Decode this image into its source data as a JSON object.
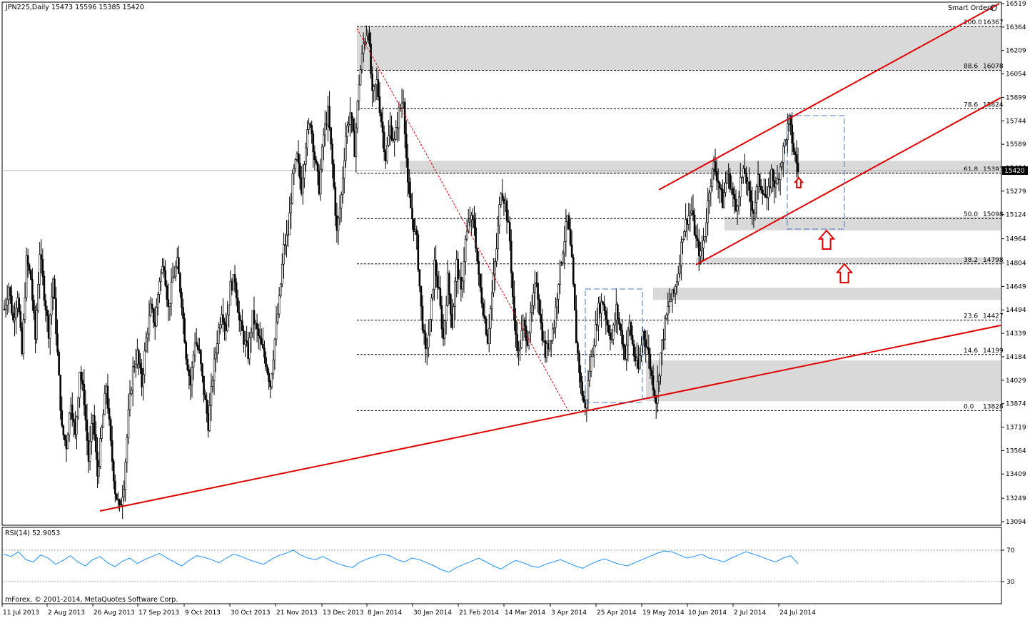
{
  "header": {
    "symbol_info": "JPN225,Daily  15473 15596 15385 15420",
    "smart_orders": "Smart Orders"
  },
  "price_tag": "15420",
  "rsi_label": "RSI(14) 52.9053",
  "copyright": "mForex, © 2001-2014, MetaQuotes Software Corp.",
  "colors": {
    "trendline": "#e00000",
    "fib_line": "#000000",
    "zone_fill": "#d9d9d9",
    "rsi_line": "#1e90ff",
    "box_dash": "#4a78c8",
    "arrow": "#e00000"
  },
  "chart_data": [
    {
      "type": "candlestick",
      "instrument": "JPN225",
      "timeframe": "Daily",
      "ohlc_last": {
        "open": 15473,
        "high": 15596,
        "low": 15385,
        "close": 15420
      },
      "ylim": [
        13050,
        16519
      ],
      "y_ticks": [
        16519,
        16364,
        16209,
        16054,
        15899,
        15744,
        15589,
        15434,
        15279,
        15124,
        14964,
        14804,
        14649,
        14494,
        14339,
        14184,
        14029,
        13874,
        13719,
        13564,
        13409,
        13249,
        13094
      ],
      "x_tick_labels": [
        "11 Jul 2013",
        "2 Aug 2013",
        "26 Aug 2013",
        "17 Sep 2013",
        "9 Oct 2013",
        "30 Oct 2013",
        "21 Nov 2013",
        "13 Dec 2013",
        "8 Jan 2014",
        "30 Jan 2014",
        "21 Feb 2014",
        "14 Mar 2014",
        "3 Apr 2014",
        "25 Apr 2014",
        "19 May 2014",
        "10 Jun 2014",
        "2 Jul 2014",
        "24 Jul 2014"
      ],
      "fibonacci": [
        {
          "level": "100.0",
          "value": 16367
        },
        {
          "level": "88.6",
          "value": 16078
        },
        {
          "level": "78.6",
          "value": 15824
        },
        {
          "level": "61.8",
          "value": 15397
        },
        {
          "level": "50.0",
          "value": 15098
        },
        {
          "level": "38.2",
          "value": 14798
        },
        {
          "level": "23.6",
          "value": 14427
        },
        {
          "level": "14.6",
          "value": 14199
        },
        {
          "level": "0.0",
          "value": 13828
        }
      ],
      "zones": [
        {
          "from": 16078,
          "to": 16367
        },
        {
          "from": 15397,
          "to": 15480
        },
        {
          "from": 15020,
          "to": 15110
        },
        {
          "from": 14798,
          "to": 14840
        },
        {
          "from": 14560,
          "to": 14640
        },
        {
          "from": 13890,
          "to": 14160
        }
      ],
      "series": [
        {
          "points": [
            [
              0,
              14500
            ],
            [
              3,
              14650
            ],
            [
              6,
              14420
            ],
            [
              9,
              14600
            ],
            [
              12,
              14200
            ],
            [
              15,
              14820
            ],
            [
              18,
              14700
            ],
            [
              21,
              14300
            ],
            [
              24,
              14880
            ],
            [
              27,
              14600
            ],
            [
              30,
              14350
            ],
            [
              33,
              14700
            ],
            [
              36,
              14200
            ],
            [
              39,
              13700
            ],
            [
              42,
              13600
            ],
            [
              45,
              13900
            ],
            [
              48,
              13650
            ],
            [
              51,
              14100
            ],
            [
              54,
              13900
            ],
            [
              57,
              13500
            ],
            [
              60,
              13800
            ],
            [
              63,
              13400
            ],
            [
              66,
              13700
            ],
            [
              69,
              14000
            ],
            [
              72,
              13600
            ],
            [
              75,
              13300
            ],
            [
              78,
              13170
            ],
            [
              81,
              13350
            ],
            [
              84,
              13800
            ],
            [
              87,
              14100
            ],
            [
              90,
              14200
            ],
            [
              93,
              14000
            ],
            [
              96,
              14300
            ],
            [
              99,
              14500
            ],
            [
              102,
              14400
            ],
            [
              105,
              14700
            ],
            [
              108,
              14800
            ],
            [
              111,
              14500
            ],
            [
              114,
              14700
            ],
            [
              117,
              14800
            ],
            [
              120,
              14550
            ],
            [
              123,
              14200
            ],
            [
              126,
              14000
            ],
            [
              129,
              14300
            ],
            [
              132,
              14200
            ],
            [
              135,
              13950
            ],
            [
              138,
              13740
            ],
            [
              141,
              14050
            ],
            [
              144,
              14300
            ],
            [
              147,
              14500
            ],
            [
              150,
              14380
            ],
            [
              153,
              14650
            ],
            [
              156,
              14700
            ],
            [
              159,
              14420
            ],
            [
              162,
              14300
            ],
            [
              165,
              14200
            ],
            [
              168,
              14450
            ],
            [
              171,
              14350
            ],
            [
              174,
              14250
            ],
            [
              177,
              14150
            ],
            [
              180,
              14000
            ],
            [
              183,
              14300
            ],
            [
              186,
              14550
            ],
            [
              189,
              14900
            ],
            [
              192,
              15000
            ],
            [
              195,
              15350
            ],
            [
              198,
              15500
            ],
            [
              201,
              15300
            ],
            [
              204,
              15600
            ],
            [
              207,
              15750
            ],
            [
              210,
              15500
            ],
            [
              213,
              15300
            ],
            [
              216,
              15650
            ],
            [
              219,
              15800
            ],
            [
              222,
              15450
            ],
            [
              225,
              15000
            ],
            [
              228,
              15250
            ],
            [
              231,
              15650
            ],
            [
              234,
              15800
            ],
            [
              237,
              15550
            ],
            [
              240,
              16000
            ],
            [
              243,
              16250
            ],
            [
              246,
              16367
            ],
            [
              249,
              15900
            ],
            [
              252,
              16000
            ],
            [
              255,
              15750
            ],
            [
              258,
              15500
            ],
            [
              261,
              15700
            ],
            [
              264,
              15600
            ],
            [
              267,
              15800
            ],
            [
              270,
              15900
            ],
            [
              273,
              15300
            ],
            [
              276,
              15100
            ],
            [
              279,
              14950
            ],
            [
              282,
              14500
            ],
            [
              285,
              14200
            ],
            [
              288,
              14400
            ],
            [
              291,
              14800
            ],
            [
              294,
              14600
            ],
            [
              297,
              14300
            ],
            [
              300,
              14700
            ],
            [
              303,
              14400
            ],
            [
              306,
              14800
            ],
            [
              309,
              14600
            ],
            [
              312,
              14950
            ],
            [
              315,
              15100
            ],
            [
              318,
              15050
            ],
            [
              321,
              14700
            ],
            [
              324,
              14500
            ],
            [
              327,
              14300
            ],
            [
              330,
              14600
            ],
            [
              333,
              14900
            ],
            [
              336,
              15300
            ],
            [
              339,
              15200
            ],
            [
              342,
              14950
            ],
            [
              345,
              14400
            ],
            [
              348,
              14200
            ],
            [
              351,
              14400
            ],
            [
              354,
              14300
            ],
            [
              357,
              14500
            ],
            [
              360,
              14700
            ],
            [
              363,
              14400
            ],
            [
              366,
              14200
            ],
            [
              369,
              14300
            ],
            [
              372,
              14400
            ],
            [
              375,
              14700
            ],
            [
              378,
              14900
            ],
            [
              381,
              15100
            ],
            [
              384,
              14800
            ],
            [
              387,
              14300
            ],
            [
              390,
              14000
            ],
            [
              393,
              13830
            ],
            [
              396,
              14100
            ],
            [
              399,
              14300
            ],
            [
              402,
              14500
            ],
            [
              405,
              14550
            ],
            [
              408,
              14400
            ],
            [
              411,
              14300
            ],
            [
              414,
              14500
            ],
            [
              417,
              14350
            ],
            [
              420,
              14200
            ],
            [
              423,
              14400
            ],
            [
              426,
              14200
            ],
            [
              429,
              14100
            ],
            [
              432,
              14350
            ],
            [
              435,
              14250
            ],
            [
              438,
              14050
            ],
            [
              441,
              13900
            ],
            [
              444,
              14200
            ],
            [
              447,
              14400
            ],
            [
              450,
              14550
            ],
            [
              453,
              14600
            ],
            [
              456,
              14750
            ],
            [
              459,
              15000
            ],
            [
              462,
              15100
            ],
            [
              465,
              15150
            ],
            [
              468,
              14950
            ],
            [
              471,
              14850
            ],
            [
              474,
              15000
            ],
            [
              477,
              15300
            ],
            [
              480,
              15450
            ],
            [
              483,
              15350
            ],
            [
              486,
              15200
            ],
            [
              489,
              15400
            ],
            [
              492,
              15300
            ],
            [
              495,
              15150
            ],
            [
              498,
              15350
            ],
            [
              501,
              15400
            ],
            [
              504,
              15250
            ],
            [
              507,
              15150
            ],
            [
              510,
              15350
            ],
            [
              513,
              15300
            ],
            [
              516,
              15200
            ],
            [
              519,
              15400
            ],
            [
              522,
              15300
            ],
            [
              525,
              15450
            ],
            [
              528,
              15600
            ],
            [
              531,
              15744
            ],
            [
              534,
              15550
            ],
            [
              537,
              15420
            ]
          ]
        }
      ],
      "rsi": {
        "label": "RSI(14)",
        "last": 52.9053,
        "levels": [
          30,
          70
        ],
        "values": [
          65,
          62,
          68,
          58,
          55,
          64,
          60,
          52,
          57,
          63,
          55,
          50,
          58,
          62,
          54,
          49,
          56,
          60,
          53,
          58,
          62,
          66,
          60,
          55,
          50,
          57,
          63,
          61,
          58,
          54,
          60,
          65,
          62,
          58,
          55,
          52,
          58,
          63,
          66,
          70,
          64,
          60,
          58,
          62,
          57,
          53,
          50,
          48,
          55,
          59,
          62,
          65,
          63,
          58,
          55,
          60,
          58,
          54,
          50,
          45,
          42,
          48,
          52,
          56,
          60,
          55,
          50,
          46,
          52,
          57,
          54,
          50,
          48,
          52,
          55,
          58,
          54,
          50,
          47,
          52,
          56,
          59,
          55,
          52,
          50,
          54,
          58,
          62,
          66,
          69,
          68,
          64,
          60,
          62,
          65,
          60,
          58,
          55,
          60,
          64,
          68,
          65,
          62,
          58,
          55,
          60,
          63,
          52.9
        ]
      }
    }
  ]
}
